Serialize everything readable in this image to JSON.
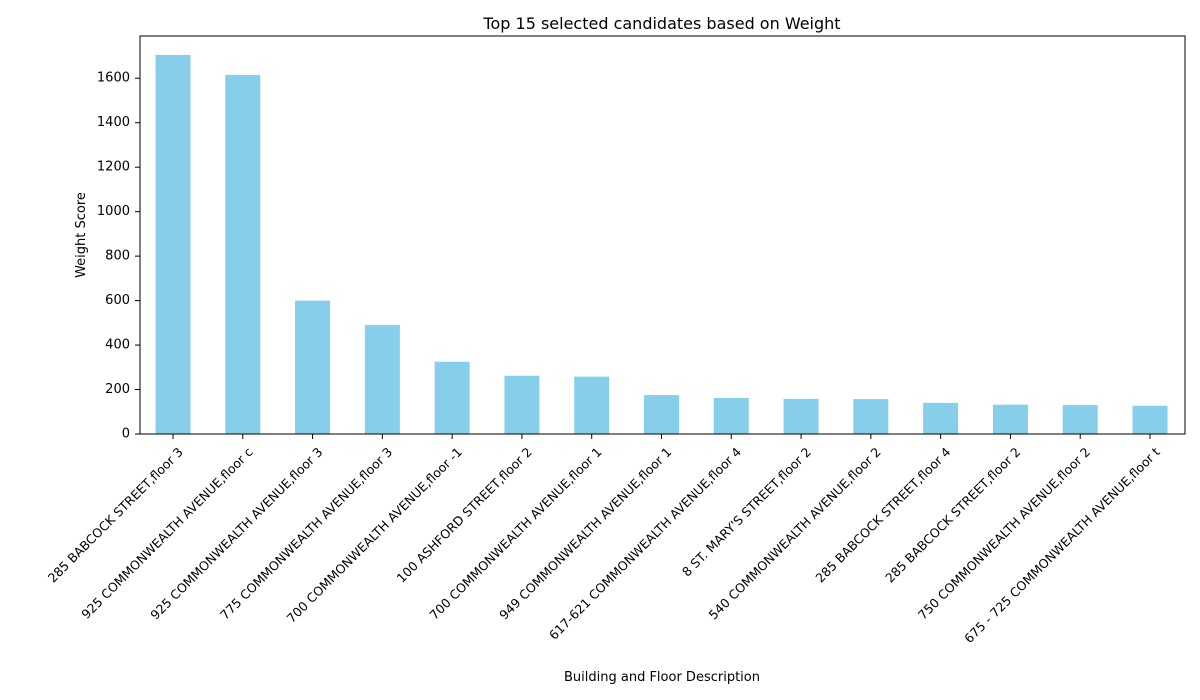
{
  "chart_data": {
    "type": "bar",
    "title": "Top 15 selected candidates based on Weight",
    "xlabel": "Building and Floor Description",
    "ylabel": "Weight Score",
    "categories": [
      "285 BABCOCK STREET,floor 3",
      "925 COMMONWEALTH AVENUE,floor c",
      "925 COMMONWEALTH AVENUE,floor 3",
      "775 COMMONWEALTH AVENUE,floor 3",
      "700 COMMONWEALTH AVENUE,floor -1",
      "100 ASHFORD STREET,floor 2",
      "700 COMMONWEALTH AVENUE,floor 1",
      "949 COMMONWEALTH AVENUE,floor 1",
      "617-621 COMMONWEALTH AVENUE,floor 4",
      "8 ST. MARY'S STREET,floor 2",
      "540 COMMONWEALTH AVENUE,floor 2",
      "285 BABCOCK STREET,floor 4",
      "285 BABCOCK STREET,floor 2",
      "750 COMMONWEALTH AVENUE,floor 2",
      "675 - 725 COMMONWEALTH AVENUE,floor t"
    ],
    "values": [
      1705,
      1615,
      600,
      490,
      325,
      262,
      258,
      175,
      162,
      158,
      157,
      140,
      132,
      130,
      127
    ],
    "yticks": [
      0,
      200,
      400,
      600,
      800,
      1000,
      1200,
      1400,
      1600
    ],
    "ylim": [
      0,
      1790
    ],
    "grid": false,
    "colors": {
      "bar": "#87ceeb",
      "axis": "#000000"
    }
  }
}
